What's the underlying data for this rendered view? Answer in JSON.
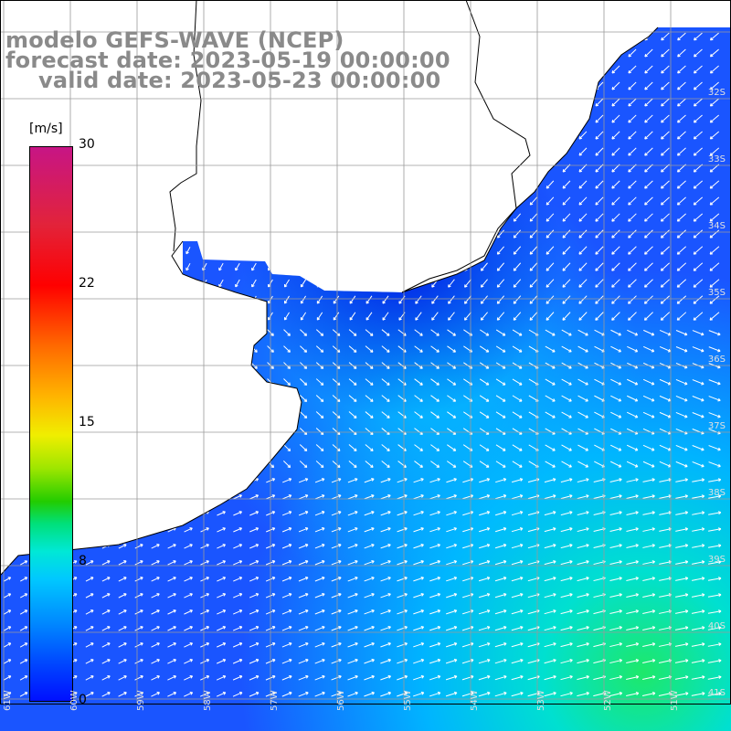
{
  "titles": {
    "line1": "modelo GEFS-WAVE (NCEP)",
    "line2": "forecast date: 2023-05-19 00:00:00",
    "line3": "valid date: 2023-05-23 00:00:00"
  },
  "legend": {
    "unit": "[m/s]",
    "ticks": [
      "30",
      "22",
      "15",
      "8",
      "0"
    ],
    "tick_values": [
      30,
      22,
      15,
      8,
      0
    ],
    "range": [
      0,
      30
    ]
  },
  "map": {
    "lat_labels": [
      "32S",
      "33S",
      "34S",
      "35S",
      "36S",
      "37S",
      "38S",
      "39S",
      "40S",
      "41S"
    ],
    "lon_labels": [
      "61W",
      "60W",
      "59W",
      "58W",
      "57W",
      "56W",
      "55W",
      "54W",
      "53W",
      "52W",
      "51W"
    ],
    "colors": {
      "ocean_low": "#0a2cff",
      "ocean_mid": "#00c8ff",
      "ocean_high": "#20e870",
      "land": "#ffffff",
      "grid": "#9a9a9a",
      "coast": "#000000",
      "arrow": "#ffffff"
    }
  }
}
